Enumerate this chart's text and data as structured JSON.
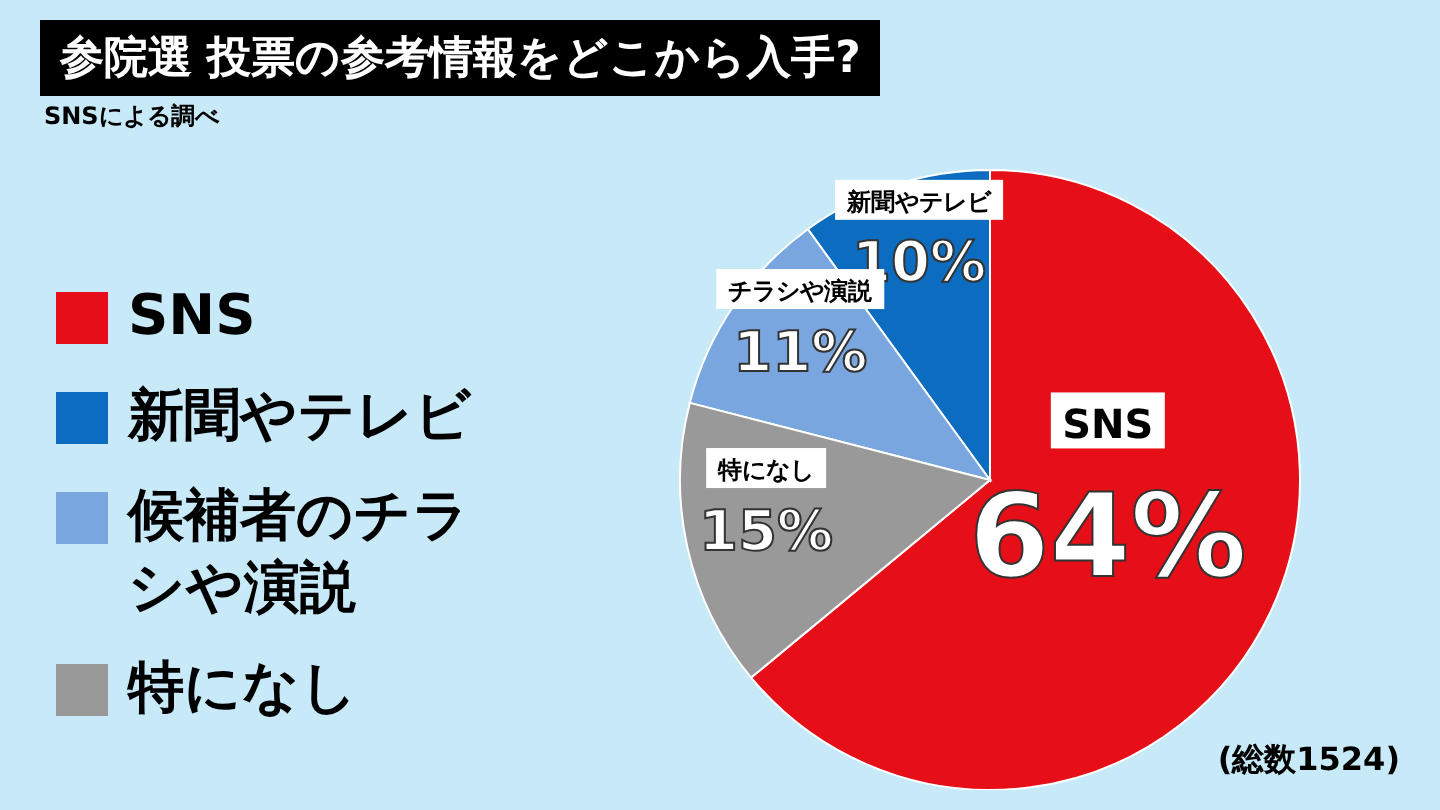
{
  "chart_data": {
    "type": "pie",
    "title": "参院選 投票の参考情報をどこから入手?",
    "subtitle": "SNSによる調べ",
    "categories": [
      "SNS",
      "新聞やテレビ",
      "候補者のチラシや演説",
      "特になし"
    ],
    "values": [
      64,
      10,
      11,
      15
    ],
    "colors": [
      "#e60f17",
      "#0b6cc0",
      "#7aa6df",
      "#999999"
    ],
    "value_labels": [
      "64%",
      "10%",
      "11%",
      "15%"
    ],
    "legend": "left",
    "annotations": [
      {
        "text": "SNS",
        "x": "SNS"
      },
      {
        "text": "新聞やテレビ",
        "x": "新聞やテレビ"
      },
      {
        "text": "チラシや演説",
        "x": "候補者のチラシや演説"
      },
      {
        "text": "特になし",
        "x": "特になし"
      },
      "(総数1524)"
    ]
  }
}
